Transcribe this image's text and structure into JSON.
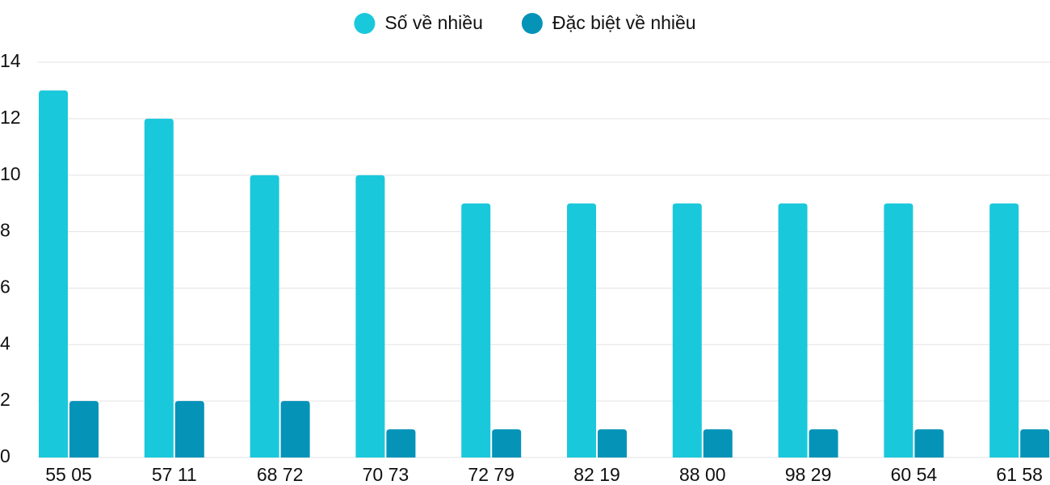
{
  "chart_data": {
    "type": "bar",
    "categories": [
      "55 05",
      "57 11",
      "68 72",
      "70 73",
      "72 79",
      "82 19",
      "88 00",
      "98 29",
      "60 54",
      "61 58"
    ],
    "series": [
      {
        "name": "Số về nhiều",
        "color": "#1ac8db",
        "values": [
          13,
          12,
          10,
          10,
          9,
          9,
          9,
          9,
          9,
          9
        ]
      },
      {
        "name": "Đặc biệt về nhiều",
        "color": "#0593b8",
        "values": [
          2,
          2,
          2,
          1,
          1,
          1,
          1,
          1,
          1,
          1
        ]
      }
    ],
    "ylim": [
      0,
      14
    ],
    "yticks": [
      0,
      2,
      4,
      6,
      8,
      10,
      12,
      14
    ],
    "grid": true,
    "legend": "top"
  }
}
